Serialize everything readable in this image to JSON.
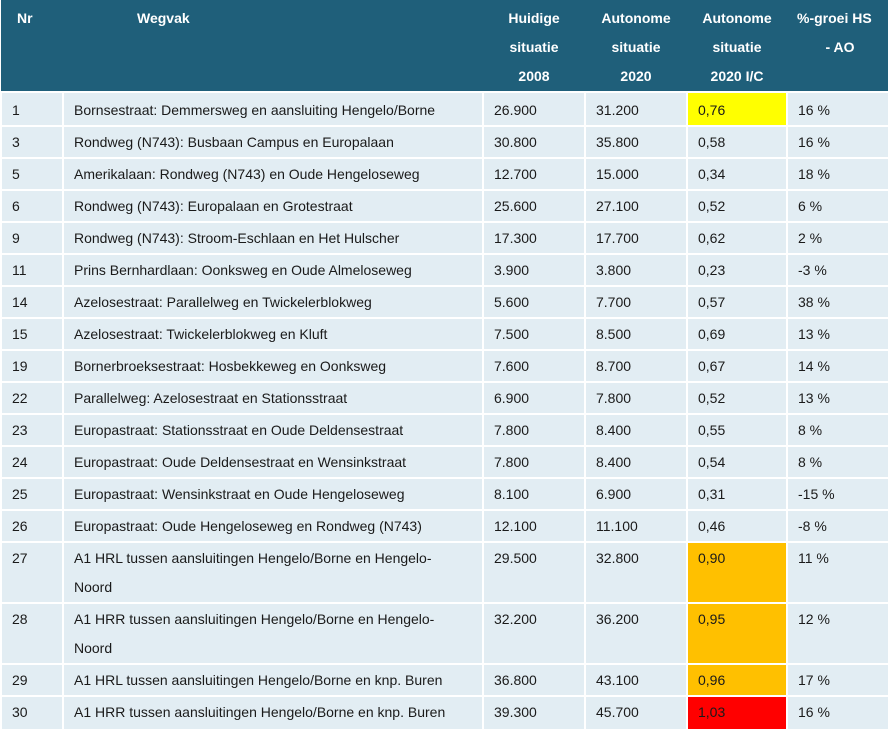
{
  "header": {
    "nr": "Nr",
    "wegvak": "Wegvak",
    "huidige": [
      "Huidige",
      "situatie",
      "2008"
    ],
    "autonoom": [
      "Autonome",
      "situatie",
      "2020"
    ],
    "ic": [
      "Autonome",
      "situatie",
      "2020 I/C"
    ],
    "groei": [
      "%-groei HS",
      "- AO"
    ]
  },
  "colors": {
    "header_bg": "#1f5f7a",
    "cell_bg": "#e2edf3",
    "yellow": "#ffff00",
    "orange": "#ffc000",
    "red": "#ff0000"
  },
  "rows": [
    {
      "nr": "1",
      "wegvak": "Bornsestraat: Demmersweg en aansluiting Hengelo/Borne",
      "huidig": "26.900",
      "auto": "31.200",
      "ic": "0,76",
      "groei": "16 %",
      "hl": "yellow"
    },
    {
      "nr": "3",
      "wegvak": "Rondweg (N743): Busbaan Campus en Europalaan",
      "huidig": "30.800",
      "auto": "35.800",
      "ic": "0,58",
      "groei": "16 %",
      "hl": ""
    },
    {
      "nr": "5",
      "wegvak": "Amerikalaan: Rondweg (N743) en Oude Hengeloseweg",
      "huidig": "12.700",
      "auto": "15.000",
      "ic": "0,34",
      "groei": "18 %",
      "hl": ""
    },
    {
      "nr": "6",
      "wegvak": "Rondweg (N743): Europalaan en Grotestraat",
      "huidig": "25.600",
      "auto": "27.100",
      "ic": "0,52",
      "groei": "6 %",
      "hl": ""
    },
    {
      "nr": "9",
      "wegvak": "Rondweg (N743): Stroom-Eschlaan en Het Hulscher",
      "huidig": "17.300",
      "auto": "17.700",
      "ic": "0,62",
      "groei": "2 %",
      "hl": ""
    },
    {
      "nr": "11",
      "wegvak": "Prins Bernhardlaan: Oonksweg en Oude Almeloseweg",
      "huidig": "3.900",
      "auto": "3.800",
      "ic": "0,23",
      "groei": "-3 %",
      "hl": ""
    },
    {
      "nr": "14",
      "wegvak": "Azelosestraat: Parallelweg en Twickelerblokweg",
      "huidig": "5.600",
      "auto": "7.700",
      "ic": "0,57",
      "groei": "38 %",
      "hl": ""
    },
    {
      "nr": "15",
      "wegvak": "Azelosestraat: Twickelerblokweg en Kluft",
      "huidig": "7.500",
      "auto": "8.500",
      "ic": "0,69",
      "groei": "13 %",
      "hl": ""
    },
    {
      "nr": "19",
      "wegvak": "Bornerbroeksestraat: Hosbekkeweg en Oonksweg",
      "huidig": "7.600",
      "auto": "8.700",
      "ic": "0,67",
      "groei": "14 %",
      "hl": ""
    },
    {
      "nr": "22",
      "wegvak": "Parallelweg: Azelosestraat en Stationsstraat",
      "huidig": "6.900",
      "auto": "7.800",
      "ic": "0,52",
      "groei": "13 %",
      "hl": ""
    },
    {
      "nr": "23",
      "wegvak": "Europastraat: Stationsstraat en Oude Deldensestraat",
      "huidig": "7.800",
      "auto": "8.400",
      "ic": "0,55",
      "groei": "8 %",
      "hl": ""
    },
    {
      "nr": "24",
      "wegvak": "Europastraat: Oude Deldensestraat en Wensinkstraat",
      "huidig": "7.800",
      "auto": "8.400",
      "ic": "0,54",
      "groei": "8 %",
      "hl": ""
    },
    {
      "nr": "25",
      "wegvak": "Europastraat: Wensinkstraat en Oude Hengeloseweg",
      "huidig": "8.100",
      "auto": "6.900",
      "ic": "0,31",
      "groei": "-15 %",
      "hl": ""
    },
    {
      "nr": "26",
      "wegvak": "Europastraat: Oude Hengeloseweg en Rondweg (N743)",
      "huidig": "12.100",
      "auto": "11.100",
      "ic": "0,46",
      "groei": "-8 %",
      "hl": ""
    },
    {
      "nr": "27",
      "wegvak": "A1 HRL tussen aansluitingen Hengelo/Borne en Hengelo-",
      "wegvak2": "Noord",
      "huidig": "29.500",
      "auto": "32.800",
      "ic": "0,90",
      "groei": "11 %",
      "hl": "orange"
    },
    {
      "nr": "28",
      "wegvak": "A1 HRR tussen aansluitingen Hengelo/Borne en Hengelo-",
      "wegvak2": "Noord",
      "huidig": "32.200",
      "auto": "36.200",
      "ic": "0,95",
      "groei": "12 %",
      "hl": "orange"
    },
    {
      "nr": "29",
      "wegvak": "A1 HRL tussen aansluitingen Hengelo/Borne en knp. Buren",
      "huidig": "36.800",
      "auto": "43.100",
      "ic": "0,96",
      "groei": "17 %",
      "hl": "orange"
    },
    {
      "nr": "30",
      "wegvak": "A1 HRR tussen aansluitingen Hengelo/Borne en knp. Buren",
      "huidig": "39.300",
      "auto": "45.700",
      "ic": "1,03",
      "groei": "16 %",
      "hl": "red"
    }
  ]
}
